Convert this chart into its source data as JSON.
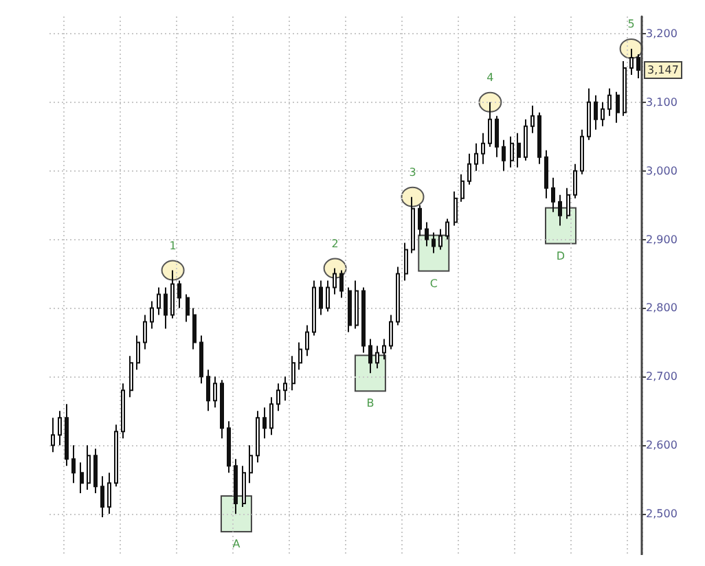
{
  "chart_data": {
    "type": "candlestick",
    "color": "#111111",
    "grid": true,
    "tick_labels": "y",
    "categories": [
      null,
      null,
      null,
      null,
      null,
      null,
      null,
      null,
      null,
      null,
      null,
      null,
      null,
      null,
      null,
      null,
      null,
      null,
      null,
      null,
      null,
      null,
      null,
      null,
      null,
      null,
      null,
      null,
      null,
      null,
      null,
      null,
      null,
      null,
      null,
      null,
      null,
      null,
      null,
      null,
      null,
      null,
      null,
      null,
      null,
      null,
      null,
      null,
      null,
      null,
      null,
      null,
      null,
      null,
      null,
      null,
      null,
      null,
      null,
      null,
      null,
      null,
      null,
      null,
      null,
      null,
      null,
      null,
      null,
      null,
      null,
      null,
      null,
      null,
      null,
      null,
      null,
      null,
      null,
      null,
      null,
      null,
      null,
      null
    ],
    "ylim": [
      2440,
      3225
    ],
    "yticks": [
      {
        "value": 2500,
        "label": "2,500"
      },
      {
        "value": 2600,
        "label": "2,600"
      },
      {
        "value": 2700,
        "label": "2,700"
      },
      {
        "value": 2800,
        "label": "2,800"
      },
      {
        "value": 2900,
        "label": "2,900"
      },
      {
        "value": 3000,
        "label": "3,000"
      },
      {
        "value": 3100,
        "label": "3,100"
      },
      {
        "value": 3200,
        "label": "3,200"
      }
    ],
    "ohlc": [
      [
        2600,
        2640,
        2590,
        2615
      ],
      [
        2615,
        2650,
        2600,
        2640
      ],
      [
        2640,
        2660,
        2570,
        2580
      ],
      [
        2580,
        2600,
        2545,
        2560
      ],
      [
        2560,
        2575,
        2530,
        2545
      ],
      [
        2545,
        2600,
        2535,
        2585
      ],
      [
        2585,
        2595,
        2530,
        2540
      ],
      [
        2540,
        2555,
        2495,
        2510
      ],
      [
        2510,
        2560,
        2500,
        2545
      ],
      [
        2545,
        2630,
        2540,
        2620
      ],
      [
        2620,
        2690,
        2610,
        2680
      ],
      [
        2680,
        2730,
        2670,
        2720
      ],
      [
        2720,
        2760,
        2710,
        2750
      ],
      [
        2750,
        2790,
        2740,
        2780
      ],
      [
        2780,
        2810,
        2770,
        2800
      ],
      [
        2800,
        2830,
        2790,
        2820
      ],
      [
        2820,
        2830,
        2770,
        2790
      ],
      [
        2790,
        2855,
        2785,
        2835
      ],
      [
        2835,
        2840,
        2800,
        2815
      ],
      [
        2815,
        2820,
        2780,
        2790
      ],
      [
        2790,
        2800,
        2740,
        2750
      ],
      [
        2750,
        2760,
        2690,
        2700
      ],
      [
        2700,
        2710,
        2650,
        2665
      ],
      [
        2665,
        2700,
        2655,
        2690
      ],
      [
        2690,
        2695,
        2610,
        2625
      ],
      [
        2625,
        2635,
        2560,
        2570
      ],
      [
        2570,
        2580,
        2500,
        2515
      ],
      [
        2515,
        2570,
        2510,
        2560
      ],
      [
        2560,
        2600,
        2545,
        2585
      ],
      [
        2585,
        2650,
        2575,
        2640
      ],
      [
        2640,
        2655,
        2610,
        2625
      ],
      [
        2625,
        2670,
        2615,
        2660
      ],
      [
        2660,
        2690,
        2650,
        2680
      ],
      [
        2680,
        2700,
        2665,
        2690
      ],
      [
        2690,
        2730,
        2680,
        2720
      ],
      [
        2720,
        2750,
        2710,
        2740
      ],
      [
        2740,
        2775,
        2730,
        2765
      ],
      [
        2765,
        2840,
        2760,
        2830
      ],
      [
        2830,
        2840,
        2790,
        2800
      ],
      [
        2800,
        2840,
        2795,
        2830
      ],
      [
        2830,
        2858,
        2820,
        2850
      ],
      [
        2850,
        2855,
        2815,
        2825
      ],
      [
        2825,
        2830,
        2765,
        2775
      ],
      [
        2775,
        2840,
        2770,
        2825
      ],
      [
        2825,
        2830,
        2735,
        2745
      ],
      [
        2745,
        2755,
        2705,
        2720
      ],
      [
        2720,
        2745,
        2712,
        2735
      ],
      [
        2735,
        2755,
        2725,
        2745
      ],
      [
        2745,
        2790,
        2740,
        2780
      ],
      [
        2780,
        2860,
        2775,
        2850
      ],
      [
        2850,
        2895,
        2840,
        2885
      ],
      [
        2885,
        2962,
        2880,
        2945
      ],
      [
        2945,
        2950,
        2905,
        2915
      ],
      [
        2915,
        2925,
        2890,
        2900
      ],
      [
        2900,
        2910,
        2880,
        2890
      ],
      [
        2890,
        2915,
        2885,
        2905
      ],
      [
        2905,
        2930,
        2900,
        2925
      ],
      [
        2925,
        2970,
        2920,
        2960
      ],
      [
        2960,
        2995,
        2955,
        2985
      ],
      [
        2985,
        3025,
        2980,
        3010
      ],
      [
        3010,
        3040,
        3000,
        3025
      ],
      [
        3025,
        3055,
        3010,
        3040
      ],
      [
        3040,
        3100,
        3035,
        3075
      ],
      [
        3075,
        3080,
        3020,
        3035
      ],
      [
        3035,
        3045,
        3000,
        3015
      ],
      [
        3015,
        3050,
        3005,
        3040
      ],
      [
        3040,
        3055,
        3005,
        3020
      ],
      [
        3020,
        3075,
        3015,
        3065
      ],
      [
        3065,
        3095,
        3055,
        3080
      ],
      [
        3080,
        3085,
        3010,
        3020
      ],
      [
        3020,
        3030,
        2960,
        2975
      ],
      [
        2975,
        2990,
        2940,
        2955
      ],
      [
        2955,
        2965,
        2920,
        2935
      ],
      [
        2935,
        2975,
        2930,
        2965
      ],
      [
        2965,
        3010,
        2960,
        3000
      ],
      [
        3000,
        3060,
        2995,
        3050
      ],
      [
        3050,
        3120,
        3045,
        3100
      ],
      [
        3100,
        3110,
        3060,
        3075
      ],
      [
        3075,
        3100,
        3065,
        3090
      ],
      [
        3090,
        3120,
        3080,
        3110
      ],
      [
        3110,
        3115,
        3070,
        3085
      ],
      [
        3085,
        3160,
        3080,
        3150
      ],
      [
        3150,
        3178,
        3140,
        3165
      ],
      [
        3165,
        3170,
        3135,
        3147
      ]
    ],
    "value_labels": [
      null,
      null,
      null,
      null,
      null,
      null,
      null,
      null,
      null,
      null,
      null,
      null,
      null,
      null,
      null,
      null,
      null,
      "1",
      null,
      null,
      null,
      null,
      null,
      null,
      null,
      null,
      "A",
      null,
      null,
      null,
      null,
      null,
      null,
      null,
      null,
      null,
      null,
      null,
      null,
      null,
      "2",
      null,
      null,
      null,
      null,
      "B",
      null,
      null,
      null,
      null,
      null,
      "3",
      null,
      null,
      "C",
      null,
      null,
      null,
      null,
      null,
      null,
      null,
      "4",
      null,
      null,
      null,
      null,
      null,
      null,
      null,
      null,
      null,
      "D",
      null,
      null,
      null,
      null,
      null,
      null,
      null,
      null,
      null,
      "5",
      null
    ],
    "annotations": [
      {
        "text": "3,147",
        "y": 3147
      }
    ]
  }
}
